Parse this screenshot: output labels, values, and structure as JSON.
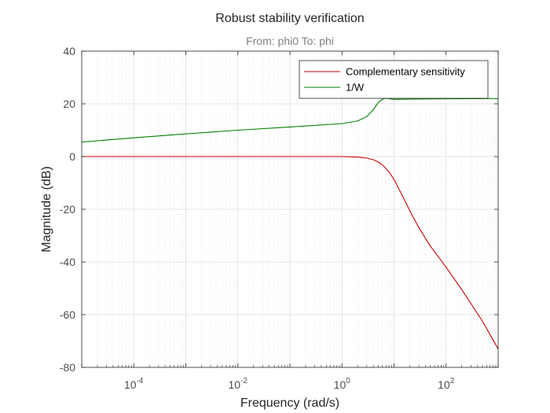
{
  "chart_data": {
    "type": "line",
    "title": "Robust stability verification",
    "subtitle": "From: phi0  To: phi",
    "xlabel": "Frequency  (rad/s)",
    "ylabel": "Magnitude (dB)",
    "xscale": "log",
    "xlim": [
      1e-05,
      1000
    ],
    "ylim": [
      -80,
      40
    ],
    "yticks": [
      -80,
      -60,
      -40,
      -20,
      0,
      20,
      40
    ],
    "xticks": [
      {
        "base": "10",
        "exp": "-4",
        "value": 0.0001
      },
      {
        "base": "10",
        "exp": "-2",
        "value": 0.01
      },
      {
        "base": "10",
        "exp": "0",
        "value": 1
      },
      {
        "base": "10",
        "exp": "2",
        "value": 100
      }
    ],
    "grid": true,
    "minor_grid": true,
    "legend_position": "top-right",
    "series": [
      {
        "name": "Complementary sensitivity",
        "color": "#cc0000",
        "x": [
          1e-05,
          0.0001,
          0.01,
          1,
          2,
          3,
          4,
          5,
          6,
          8,
          10,
          15,
          20,
          30,
          50,
          100,
          200,
          500,
          1000
        ],
        "y": [
          0,
          0,
          0,
          0,
          -0.2,
          -0.6,
          -1.2,
          -2.1,
          -3.2,
          -5.8,
          -8.7,
          -15.5,
          -20.5,
          -27,
          -34,
          -42,
          -50.5,
          -62.5,
          -73
        ]
      },
      {
        "name": "1/W",
        "color": "#008000",
        "x": [
          1e-05,
          0.0001,
          0.001,
          0.01,
          0.1,
          1,
          2,
          3,
          4,
          5,
          6,
          7,
          10,
          20,
          100,
          1000
        ],
        "y": [
          5.5,
          7.1,
          8.6,
          10,
          11.2,
          12.5,
          13.5,
          15.2,
          17.8,
          20.5,
          21.8,
          22.1,
          21.7,
          21.8,
          21.9,
          22
        ]
      }
    ]
  }
}
